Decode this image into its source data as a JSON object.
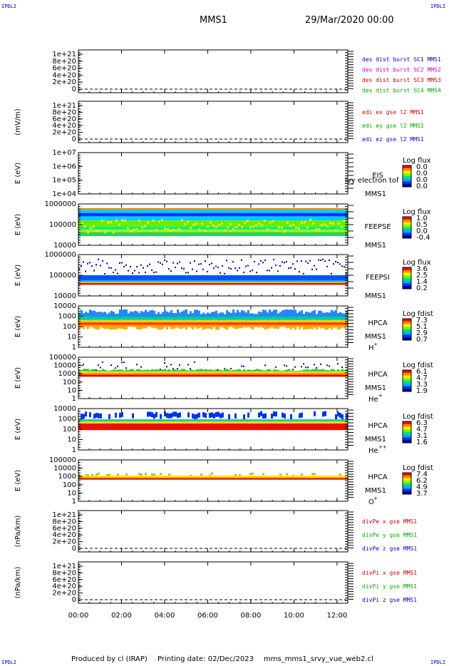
{
  "corner_marks": {
    "tl": "IPDLI",
    "tr": "IPDLI",
    "bl": "IPDLI",
    "br": "IPDLI"
  },
  "header": {
    "spacecraft": "MMS1",
    "date": "29/Mar/2020 00:00"
  },
  "footer": {
    "produced": "Produced by cl (IRAP)",
    "printing_date": "Printing date: 02/Dec/2023",
    "script": "mms_mms1_srvy_vue_web2.cl"
  },
  "chart_data": {
    "type": "multi-panel time series",
    "x": {
      "range": [
        "00:00",
        "12:30"
      ],
      "ticks": [
        "00:00",
        "02:00",
        "04:00",
        "06:00",
        "08:00",
        "10:00",
        "12:00"
      ]
    },
    "panels": [
      {
        "id": "p1",
        "type": "line",
        "ylabel": "",
        "yticks": [
          "1e+21",
          "8e+20",
          "6e+20",
          "4e+20",
          "2e+20",
          "0"
        ],
        "legend": [
          {
            "text": "des dist burst SC1 MMS1",
            "color": "#0000cc"
          },
          {
            "text": "des dist burst SC2 MMS2",
            "color": "#cc00cc"
          },
          {
            "text": "des dist burst SC3 MMS3",
            "color": "#cc0000"
          },
          {
            "text": "des dist burst SC4 MMS4",
            "color": "#00aa00"
          }
        ]
      },
      {
        "id": "p2",
        "type": "line",
        "ylabel": "(mV/m)",
        "yticks": [
          "1e+21",
          "8e+20",
          "6e+20",
          "4e+20",
          "2e+20",
          "0"
        ],
        "legend": [
          {
            "text": "edi ex gse l2 MMS1",
            "color": "#cc0000"
          },
          {
            "text": "edi ey gse l2 MMS1",
            "color": "#00aa00"
          },
          {
            "text": "edi ez gse l2 MMS1",
            "color": "#0000cc"
          }
        ]
      },
      {
        "id": "p3",
        "type": "heatmap",
        "ylabel": "E (eV)",
        "yticks": [
          "1e+07",
          "1e+06",
          "1e+05",
          "1e+04"
        ],
        "instrument": [
          "EIS",
          "MMS1"
        ],
        "overlay_text": "lvy electron tof",
        "colorbar": {
          "title": "Log flux",
          "ticks": [
            "0.0",
            "0.0",
            "0.0",
            "0.0"
          ]
        }
      },
      {
        "id": "p4",
        "type": "heatmap",
        "ylabel": "E (eV)",
        "yticks": [
          "1000000",
          "100000",
          "10000"
        ],
        "instrument": [
          "FEEPSE",
          "MMS1"
        ],
        "colorbar": {
          "title": "Log flux",
          "ticks": [
            "1.0",
            "0.5",
            "0.0",
            "-0.4"
          ]
        }
      },
      {
        "id": "p5",
        "type": "heatmap",
        "ylabel": "E (eV)",
        "yticks": [
          "1000000",
          "100000",
          "10000"
        ],
        "instrument": [
          "FEEPSI",
          "MMS1"
        ],
        "colorbar": {
          "title": "Log flux",
          "ticks": [
            "3.6",
            "2.5",
            "1.4",
            "0.2"
          ]
        }
      },
      {
        "id": "p6",
        "type": "heatmap",
        "ylabel": "E (eV)",
        "yticks": [
          "10000",
          "1000",
          "100",
          "10",
          "1"
        ],
        "instrument": [
          "HPCA",
          "MMS1"
        ],
        "species": "H",
        "species_sup": "+",
        "colorbar": {
          "title": "Log fdist",
          "ticks": [
            "7.3",
            "5.1",
            "2.9",
            "0.7"
          ]
        }
      },
      {
        "id": "p7",
        "type": "heatmap",
        "ylabel": "E (eV)",
        "yticks": [
          "100000",
          "10000",
          "1000",
          "100",
          "10",
          "1"
        ],
        "instrument": [
          "HPCA",
          "MMS1"
        ],
        "species": "He",
        "species_sup": "+",
        "colorbar": {
          "title": "Log fdist",
          "ticks": [
            "6.1",
            "4.7",
            "3.3",
            "1.9"
          ]
        }
      },
      {
        "id": "p8",
        "type": "heatmap",
        "ylabel": "E (eV)",
        "yticks": [
          "10000",
          "1000",
          "100",
          "10",
          "1"
        ],
        "instrument": [
          "HPCA",
          "MMS1"
        ],
        "species": "He",
        "species_sup": "++",
        "colorbar": {
          "title": "Log fdist",
          "ticks": [
            "6.3",
            "4.7",
            "3.1",
            "1.6"
          ]
        }
      },
      {
        "id": "p9",
        "type": "heatmap",
        "ylabel": "E (eV)",
        "yticks": [
          "100000",
          "10000",
          "1000",
          "100",
          "10",
          "1"
        ],
        "instrument": [
          "HPCA",
          "MMS1"
        ],
        "species": "O",
        "species_sup": "+",
        "colorbar": {
          "title": "Log fdist",
          "ticks": [
            "7.4",
            "6.2",
            "4.9",
            "3.7"
          ]
        }
      },
      {
        "id": "p10",
        "type": "line",
        "ylabel": "(nPa/km)",
        "yticks": [
          "1e+21",
          "8e+20",
          "6e+20",
          "4e+20",
          "2e+20",
          "0"
        ],
        "legend": [
          {
            "text": "divPe x gse MMS1",
            "color": "#cc0000"
          },
          {
            "text": "divPe y gse MMS1",
            "color": "#00aa00"
          },
          {
            "text": "divPe z gse MMS1",
            "color": "#0000cc"
          }
        ]
      },
      {
        "id": "p11",
        "type": "line",
        "ylabel": "(nPa/km)",
        "yticks": [
          "1e+21",
          "8e+20",
          "6e+20",
          "4e+20",
          "2e+20",
          "0"
        ],
        "legend": [
          {
            "text": "divPi x gse MMS1",
            "color": "#cc0000"
          },
          {
            "text": "divPi y gse MMS1",
            "color": "#00aa00"
          },
          {
            "text": "divPi z gse MMS1",
            "color": "#0000cc"
          }
        ]
      }
    ]
  }
}
